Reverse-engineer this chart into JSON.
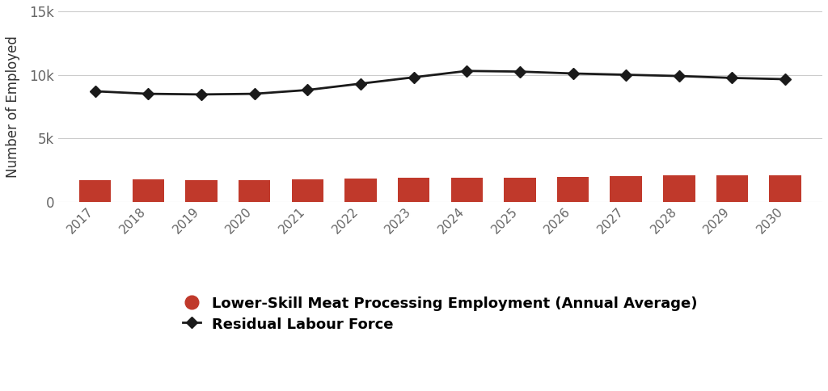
{
  "years": [
    2017,
    2018,
    2019,
    2020,
    2021,
    2022,
    2023,
    2024,
    2025,
    2026,
    2027,
    2028,
    2029,
    2030
  ],
  "bar_values": [
    1700,
    1750,
    1730,
    1720,
    1780,
    1820,
    1920,
    1900,
    1860,
    1950,
    2000,
    2050,
    2060,
    2100
  ],
  "line_values": [
    8700,
    8500,
    8450,
    8500,
    8800,
    9300,
    9800,
    10300,
    10250,
    10100,
    10000,
    9900,
    9750,
    9650
  ],
  "bar_color": "#c0392b",
  "line_color": "#1a1a1a",
  "marker_color": "#1a1a1a",
  "ylabel": "Number of Employed",
  "ylim": [
    0,
    15000
  ],
  "yticks": [
    0,
    5000,
    10000,
    15000
  ],
  "ytick_labels": [
    "0",
    "5k",
    "10k",
    "15k"
  ],
  "legend_bar_label": "Lower-Skill Meat Processing Employment (Annual Average)",
  "legend_line_label": "Residual Labour Force",
  "background_color": "#ffffff",
  "grid_color": "#cccccc",
  "tick_label_color": "#666666",
  "ylabel_color": "#333333"
}
